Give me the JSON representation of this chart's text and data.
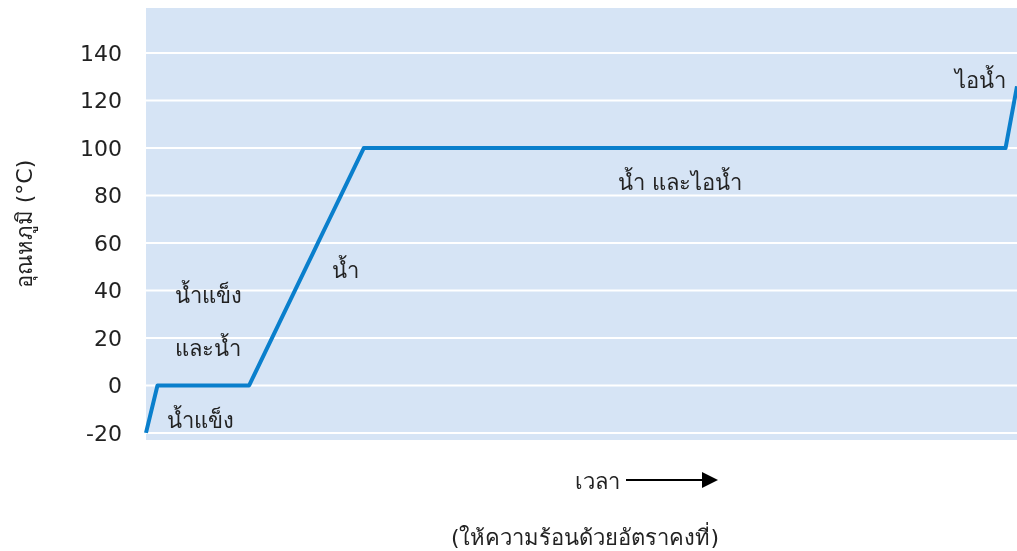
{
  "chart_data": {
    "type": "line",
    "ylabel": "อุณหภูมิ (°C)",
    "xlabel": "เวลา",
    "categories": [
      null,
      null,
      null,
      null,
      null,
      null,
      null,
      null,
      null,
      null,
      null,
      null,
      null,
      null,
      null,
      null,
      null,
      null,
      null,
      null,
      null,
      null,
      null,
      null,
      null,
      null,
      null,
      null,
      null,
      null,
      null,
      null,
      null,
      null,
      null,
      null,
      null,
      null,
      null,
      null,
      null,
      null,
      null,
      null,
      null,
      null,
      null,
      null,
      null,
      null,
      null,
      null,
      null,
      null,
      null,
      null,
      null,
      null,
      null,
      null,
      null,
      null,
      null,
      null,
      null,
      null,
      null,
      null,
      null,
      null,
      null,
      null,
      null,
      null,
      null,
      null,
      null
    ],
    "series": [
      {
        "color": "#0a7fcc",
        "values": [
          -20,
          0,
          0,
          0,
          0,
          0,
          0,
          0,
          0,
          0,
          10,
          20,
          30,
          40,
          50,
          60,
          70,
          80,
          90,
          100,
          100,
          100,
          100,
          100,
          100,
          100,
          100,
          100,
          100,
          100,
          100,
          100,
          100,
          100,
          100,
          100,
          100,
          100,
          100,
          100,
          100,
          100,
          100,
          100,
          100,
          100,
          100,
          100,
          100,
          100,
          100,
          100,
          100,
          100,
          100,
          100,
          100,
          100,
          100,
          100,
          100,
          100,
          100,
          100,
          100,
          100,
          100,
          100,
          100,
          100,
          100,
          100,
          100,
          100,
          100,
          100,
          126
        ]
      }
    ],
    "ylim": [
      -23,
      159
    ],
    "yticks": [
      -20,
      0,
      20,
      40,
      60,
      80,
      100,
      120,
      140
    ],
    "tick_labels": "y",
    "grid": "y",
    "marker": "none",
    "line_style": "solid",
    "annotations": [
      "น้ำแข็ง",
      "น้ำแข็ง\nและน้ำ",
      "น้ำ",
      "น้ำ และไอน้ำ",
      "ไอน้ำ",
      "(ให้ความร้อนด้วยอัตราคงที่)"
    ]
  }
}
